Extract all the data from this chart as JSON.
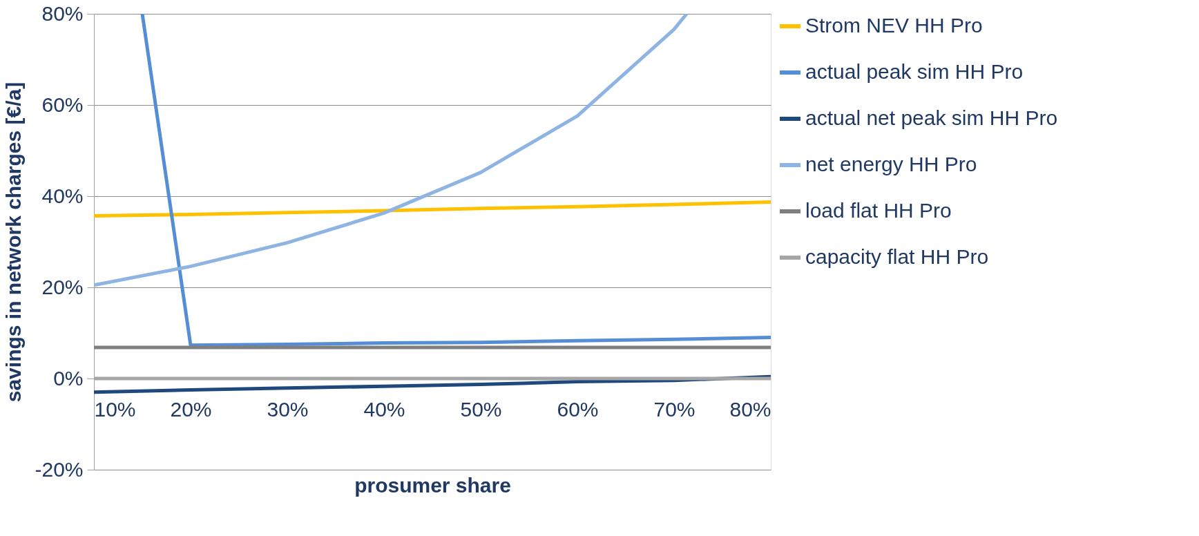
{
  "chart_data": {
    "type": "line",
    "xlabel": "prosumer share",
    "ylabel": "savings in network charges [€/a]",
    "x": [
      10,
      20,
      30,
      40,
      50,
      60,
      70,
      80
    ],
    "xlim": [
      10,
      80
    ],
    "ylim": [
      -20,
      80
    ],
    "xticks": [
      {
        "value": 10,
        "label": "10%"
      },
      {
        "value": 20,
        "label": "20%"
      },
      {
        "value": 30,
        "label": "30%"
      },
      {
        "value": 40,
        "label": "40%"
      },
      {
        "value": 50,
        "label": "50%"
      },
      {
        "value": 60,
        "label": "60%"
      },
      {
        "value": 70,
        "label": "70%"
      },
      {
        "value": 80,
        "label": "80%"
      }
    ],
    "yticks": [
      {
        "value": -20,
        "label": "-20%"
      },
      {
        "value": 0,
        "label": "0%"
      },
      {
        "value": 20,
        "label": "20%"
      },
      {
        "value": 40,
        "label": "40%"
      },
      {
        "value": 60,
        "label": "60%"
      },
      {
        "value": 80,
        "label": "80%"
      }
    ],
    "grid": "y",
    "legend": "right",
    "marker": "none",
    "line_style": "solid",
    "series": [
      {
        "name": "Strom NEV HH Pro",
        "color": "#ffc000",
        "values": [
          35.7,
          36.0,
          36.4,
          36.8,
          37.3,
          37.7,
          38.2,
          38.7
        ]
      },
      {
        "name": "actual peak sim HH Pro",
        "color": "#558ed5",
        "x": [
          15,
          20,
          30,
          40,
          50,
          60,
          70,
          80
        ],
        "values": [
          80,
          7.3,
          7.5,
          7.8,
          7.9,
          8.3,
          8.6,
          9.0
        ]
      },
      {
        "name": "actual net peak sim HH Pro",
        "color": "#1f497d",
        "values": [
          -3.0,
          -2.5,
          -2.1,
          -1.7,
          -1.3,
          -0.7,
          -0.4,
          0.4
        ]
      },
      {
        "name": "net energy HH Pro",
        "color": "#8eb4e3",
        "x": [
          10,
          20,
          30,
          40,
          50,
          60,
          70,
          71.3
        ],
        "values": [
          20.5,
          24.6,
          29.8,
          36.3,
          45.2,
          57.6,
          76.6,
          80
        ]
      },
      {
        "name": "load flat HH Pro",
        "color": "#7f7f7f",
        "values": [
          6.8,
          6.8,
          6.8,
          6.8,
          6.8,
          6.8,
          6.8,
          6.8
        ]
      },
      {
        "name": "capacity flat HH Pro",
        "color": "#a6a6a6",
        "values": [
          0,
          0,
          0,
          0,
          0,
          0,
          0,
          0
        ]
      }
    ]
  }
}
